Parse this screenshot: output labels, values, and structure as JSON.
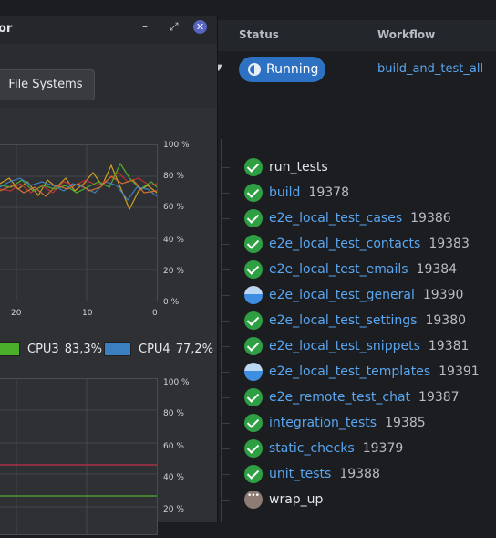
{
  "ci": {
    "headers": {
      "status": "Status",
      "workflow": "Workflow"
    },
    "status": "Running",
    "workflow": "build_and_test_all",
    "jobs": [
      {
        "name": "run_tests",
        "id": "",
        "state": "success",
        "link": false
      },
      {
        "name": "build",
        "id": "19378",
        "state": "success",
        "link": true
      },
      {
        "name": "e2e_local_test_cases",
        "id": "19386",
        "state": "success",
        "link": true
      },
      {
        "name": "e2e_local_test_contacts",
        "id": "19383",
        "state": "success",
        "link": true
      },
      {
        "name": "e2e_local_test_emails",
        "id": "19384",
        "state": "success",
        "link": true
      },
      {
        "name": "e2e_local_test_general",
        "id": "19390",
        "state": "running",
        "link": true
      },
      {
        "name": "e2e_local_test_settings",
        "id": "19380",
        "state": "success",
        "link": true
      },
      {
        "name": "e2e_local_test_snippets",
        "id": "19381",
        "state": "success",
        "link": true
      },
      {
        "name": "e2e_local_test_templates",
        "id": "19391",
        "state": "running",
        "link": true
      },
      {
        "name": "e2e_remote_test_chat",
        "id": "19387",
        "state": "success",
        "link": true
      },
      {
        "name": "integration_tests",
        "id": "19385",
        "state": "success",
        "link": true
      },
      {
        "name": "static_checks",
        "id": "19379",
        "state": "success",
        "link": true
      },
      {
        "name": "unit_tests",
        "id": "19388",
        "state": "success",
        "link": true
      },
      {
        "name": "wrap_up",
        "id": "",
        "state": "waiting",
        "link": false
      }
    ]
  },
  "monitor": {
    "title_fragment": "or",
    "tab": "File Systems",
    "cpu_pct_labels": [
      "100 %",
      "80 %",
      "60 %",
      "40 %",
      "20 %",
      "0 %"
    ],
    "mem_pct_labels": [
      "100 %",
      "80 %",
      "60 %",
      "40 %",
      "20 %"
    ],
    "x_labels": [
      "20",
      "10",
      "0"
    ],
    "legend": [
      {
        "name": "CPU3",
        "value": "83,3%",
        "color": "#4caf2c"
      },
      {
        "name": "CPU4",
        "value": "77,2%",
        "color": "#3c7fc0"
      }
    ]
  },
  "colors": {
    "success": "#2ea043",
    "running": "#3d8de0",
    "link": "#5aa6f0",
    "pill": "#2d72c2"
  }
}
